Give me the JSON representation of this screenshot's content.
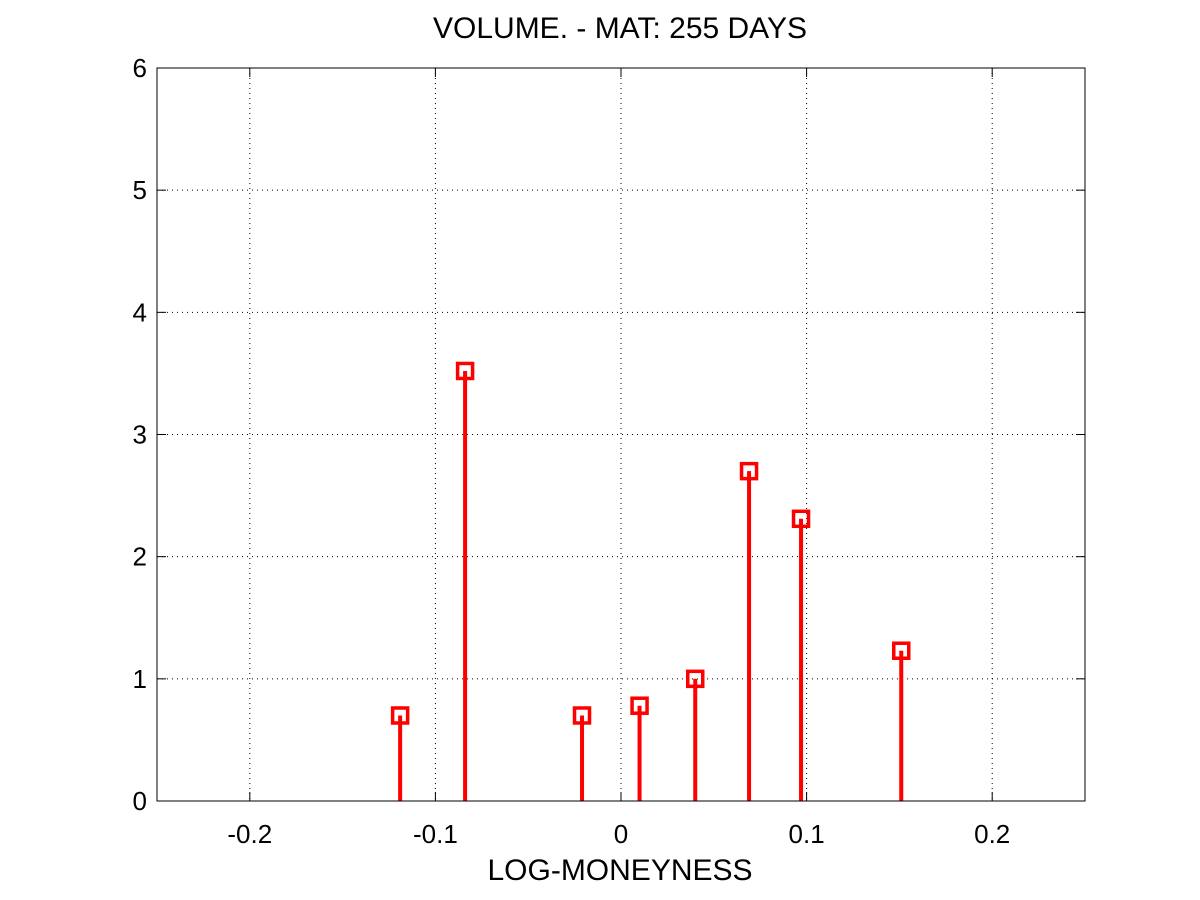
{
  "chart_data": {
    "type": "stem",
    "title": "VOLUME. - MAT: 255 DAYS",
    "xlabel": "LOG-MONEYNESS",
    "ylabel": "",
    "xlim": [
      -0.25,
      0.25
    ],
    "ylim": [
      0,
      6
    ],
    "xticks": [
      -0.2,
      -0.1,
      0,
      0.1,
      0.2
    ],
    "xtick_labels": [
      "-0.2",
      "-0.1",
      "0",
      "0.1",
      "0.2"
    ],
    "yticks": [
      0,
      1,
      2,
      3,
      4,
      5,
      6
    ],
    "ytick_labels": [
      "0",
      "1",
      "2",
      "3",
      "4",
      "5",
      "6"
    ],
    "grid": true,
    "marker": "square",
    "color": "#ff0000",
    "points": [
      {
        "x": -0.119,
        "y": 0.7
      },
      {
        "x": -0.084,
        "y": 3.52
      },
      {
        "x": -0.021,
        "y": 0.7
      },
      {
        "x": 0.01,
        "y": 0.78
      },
      {
        "x": 0.04,
        "y": 1.0
      },
      {
        "x": 0.069,
        "y": 2.7
      },
      {
        "x": 0.097,
        "y": 2.31
      },
      {
        "x": 0.151,
        "y": 1.23
      }
    ]
  }
}
